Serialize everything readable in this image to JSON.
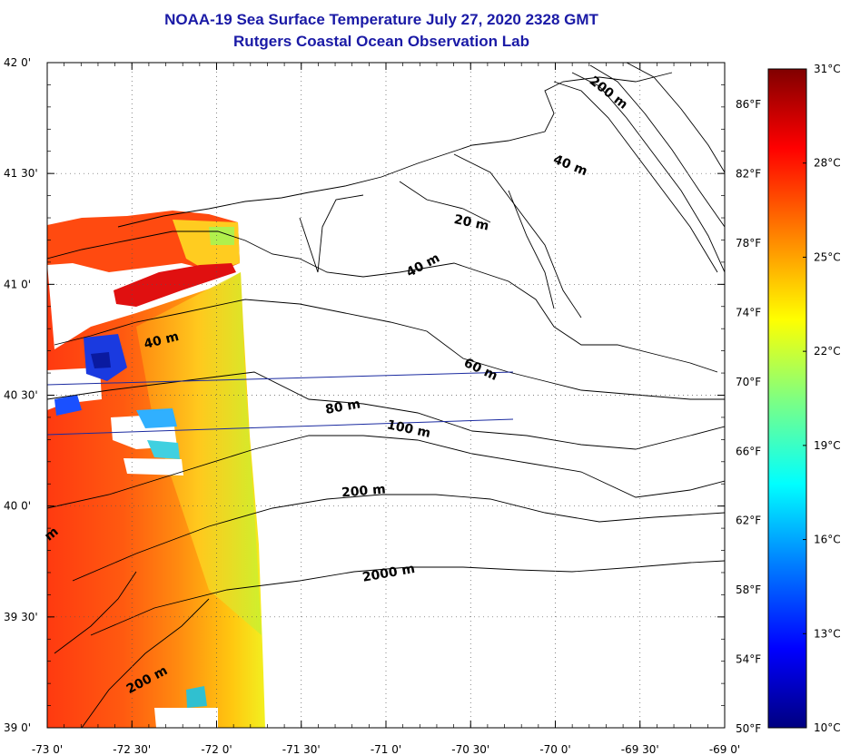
{
  "map": {
    "title": "NOAA-19 Sea Surface Temperature July 27, 2020 2328 GMT",
    "subtitle": "Rutgers Coastal Ocean Observation Lab",
    "lon_min": -73.0,
    "lon_max": -69.0,
    "lat_min": 39.0,
    "lat_max": 42.0,
    "lon_ticks": [
      {
        "value": -73.0,
        "label": "-73 0'"
      },
      {
        "value": -72.5,
        "label": "-72 30'"
      },
      {
        "value": -72.0,
        "label": "-72 0'"
      },
      {
        "value": -71.5,
        "label": "-71 30'"
      },
      {
        "value": -71.0,
        "label": "-71 0'"
      },
      {
        "value": -70.5,
        "label": "-70 30'"
      },
      {
        "value": -70.0,
        "label": "-70 0'"
      },
      {
        "value": -69.5,
        "label": "-69 30'"
      },
      {
        "value": -69.0,
        "label": "-69 0'"
      }
    ],
    "lat_ticks": [
      {
        "value": 42.0,
        "label": "42 0'"
      },
      {
        "value": 41.5,
        "label": "41 30'"
      },
      {
        "value": 41.0,
        "label": "41 0'"
      },
      {
        "value": 40.5,
        "label": "40 30'"
      },
      {
        "value": 40.0,
        "label": "40 0'"
      },
      {
        "value": 39.5,
        "label": "39 30'"
      },
      {
        "value": 39.0,
        "label": "39 0'"
      }
    ],
    "fahrenheit_ticks": [
      {
        "value": 86,
        "label": "86°F"
      },
      {
        "value": 82,
        "label": "82°F"
      },
      {
        "value": 78,
        "label": "78°F"
      },
      {
        "value": 74,
        "label": "74°F"
      },
      {
        "value": 70,
        "label": "70°F"
      },
      {
        "value": 66,
        "label": "66°F"
      },
      {
        "value": 62,
        "label": "62°F"
      },
      {
        "value": 58,
        "label": "58°F"
      },
      {
        "value": 54,
        "label": "54°F"
      },
      {
        "value": 50,
        "label": "50°F"
      }
    ],
    "depth_labels": [
      {
        "text": "200 m",
        "lon": -69.7,
        "lat": 41.85,
        "angle": 38
      },
      {
        "text": "40 m",
        "lon": -69.92,
        "lat": 41.52,
        "angle": 22
      },
      {
        "text": "20 m",
        "lon": -70.5,
        "lat": 41.26,
        "angle": 12
      },
      {
        "text": "40 m",
        "lon": -70.77,
        "lat": 41.07,
        "angle": -28
      },
      {
        "text": "40 m",
        "lon": -72.32,
        "lat": 40.73,
        "angle": -14
      },
      {
        "text": "60 m",
        "lon": -70.45,
        "lat": 40.6,
        "angle": 25
      },
      {
        "text": "80 m",
        "lon": -71.25,
        "lat": 40.43,
        "angle": -10
      },
      {
        "text": "100 m",
        "lon": -70.87,
        "lat": 40.33,
        "angle": 12
      },
      {
        "text": "200 m",
        "lon": -71.13,
        "lat": 40.05,
        "angle": -5
      },
      {
        "text": "2000 m",
        "lon": -70.98,
        "lat": 39.68,
        "angle": -10
      },
      {
        "text": "200 m",
        "lon": -72.4,
        "lat": 39.2,
        "angle": -28
      },
      {
        "text": "m",
        "lon": -72.96,
        "lat": 39.86,
        "angle": -40
      }
    ]
  },
  "colorbar": {
    "min_c": 10,
    "max_c": 31,
    "min_f": 50,
    "max_f": 88,
    "celsius_ticks": [
      {
        "value": 31,
        "label": "31°C"
      },
      {
        "value": 28,
        "label": "28°C"
      },
      {
        "value": 25,
        "label": "25°C"
      },
      {
        "value": 22,
        "label": "22°C"
      },
      {
        "value": 19,
        "label": "19°C"
      },
      {
        "value": 16,
        "label": "16°C"
      },
      {
        "value": 13,
        "label": "13°C"
      },
      {
        "value": 10,
        "label": "10°C"
      }
    ],
    "colors": [
      "#000080",
      "#0000ff",
      "#0080ff",
      "#00ffff",
      "#80ff80",
      "#ffff00",
      "#ff8000",
      "#ff0000",
      "#800000"
    ]
  }
}
